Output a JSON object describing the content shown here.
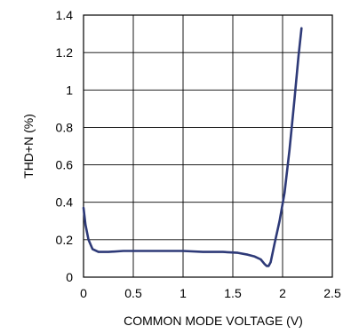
{
  "chart_data": {
    "type": "line",
    "xlabel": "COMMON MODE VOLTAGE (V)",
    "ylabel": "THD+N (%)",
    "xlim": [
      0,
      2.5
    ],
    "ylim": [
      0,
      1.4
    ],
    "xticks": [
      0,
      0.5,
      1,
      1.5,
      2,
      2.5
    ],
    "xtick_labels": [
      "0",
      "0.5",
      "1",
      "1.5",
      "2",
      "2.5"
    ],
    "yticks": [
      0,
      0.2,
      0.4,
      0.6,
      0.8,
      1,
      1.2,
      1.4
    ],
    "ytick_labels": [
      "0",
      "0.2",
      "0.4",
      "0.6",
      "0.8",
      "1",
      "1.2",
      "1.4"
    ],
    "grid": true,
    "series": [
      {
        "color": "#2e3a78",
        "x": [
          0.0,
          0.02,
          0.05,
          0.09,
          0.15,
          0.25,
          0.4,
          0.6,
          0.8,
          1.0,
          1.2,
          1.4,
          1.55,
          1.65,
          1.72,
          1.78,
          1.82,
          1.84,
          1.86,
          1.88,
          1.92,
          1.97,
          2.02,
          2.07,
          2.12,
          2.16,
          2.19
        ],
        "values": [
          0.37,
          0.28,
          0.2,
          0.15,
          0.135,
          0.135,
          0.14,
          0.14,
          0.14,
          0.14,
          0.135,
          0.135,
          0.13,
          0.12,
          0.11,
          0.095,
          0.07,
          0.06,
          0.06,
          0.08,
          0.18,
          0.3,
          0.45,
          0.68,
          0.95,
          1.18,
          1.33
        ]
      }
    ]
  }
}
